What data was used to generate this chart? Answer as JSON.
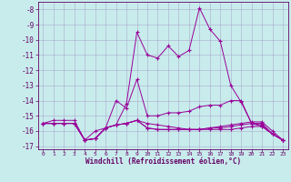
{
  "xlabel": "Windchill (Refroidissement éolien,°C)",
  "ylabel": "",
  "xlim": [
    -0.5,
    23.5
  ],
  "ylim": [
    -17.2,
    -7.5
  ],
  "yticks": [
    -8,
    -9,
    -10,
    -11,
    -12,
    -13,
    -14,
    -15,
    -16,
    -17
  ],
  "xticks": [
    0,
    1,
    2,
    3,
    4,
    5,
    6,
    7,
    8,
    9,
    10,
    11,
    12,
    13,
    14,
    15,
    16,
    17,
    18,
    19,
    20,
    21,
    22,
    23
  ],
  "bg_color": "#c8ecec",
  "grid_color": "#aaaacc",
  "line_color": "#990099",
  "lines": [
    [
      -15.5,
      -15.5,
      -15.5,
      -15.5,
      -16.6,
      -16.5,
      -15.8,
      -15.6,
      -14.2,
      -9.5,
      -11.0,
      -11.2,
      -10.4,
      -11.1,
      -10.7,
      -7.9,
      -9.3,
      -10.1,
      -13.0,
      -14.1,
      -15.5,
      -15.6,
      -16.2,
      -16.6
    ],
    [
      -15.5,
      -15.5,
      -15.5,
      -15.5,
      -16.6,
      -16.5,
      -15.8,
      -14.0,
      -14.5,
      -12.6,
      -15.0,
      -15.0,
      -14.8,
      -14.8,
      -14.7,
      -14.4,
      -14.3,
      -14.3,
      -14.0,
      -14.0,
      -15.5,
      -15.7,
      -16.2,
      -16.6
    ],
    [
      -15.5,
      -15.5,
      -15.5,
      -15.5,
      -16.6,
      -16.5,
      -15.8,
      -15.6,
      -15.5,
      -15.3,
      -15.8,
      -15.9,
      -15.9,
      -15.9,
      -15.9,
      -15.9,
      -15.9,
      -15.9,
      -15.9,
      -15.8,
      -15.7,
      -15.7,
      -16.2,
      -16.6
    ],
    [
      -15.5,
      -15.5,
      -15.5,
      -15.5,
      -16.6,
      -16.5,
      -15.8,
      -15.6,
      -15.5,
      -15.3,
      -15.8,
      -15.9,
      -15.9,
      -15.9,
      -15.9,
      -15.9,
      -15.8,
      -15.8,
      -15.7,
      -15.6,
      -15.5,
      -15.5,
      -16.2,
      -16.6
    ],
    [
      -15.5,
      -15.3,
      -15.3,
      -15.3,
      -16.6,
      -16.0,
      -15.8,
      -15.6,
      -15.5,
      -15.3,
      -15.5,
      -15.6,
      -15.7,
      -15.8,
      -15.9,
      -15.9,
      -15.8,
      -15.7,
      -15.6,
      -15.5,
      -15.4,
      -15.4,
      -16.0,
      -16.6
    ]
  ]
}
